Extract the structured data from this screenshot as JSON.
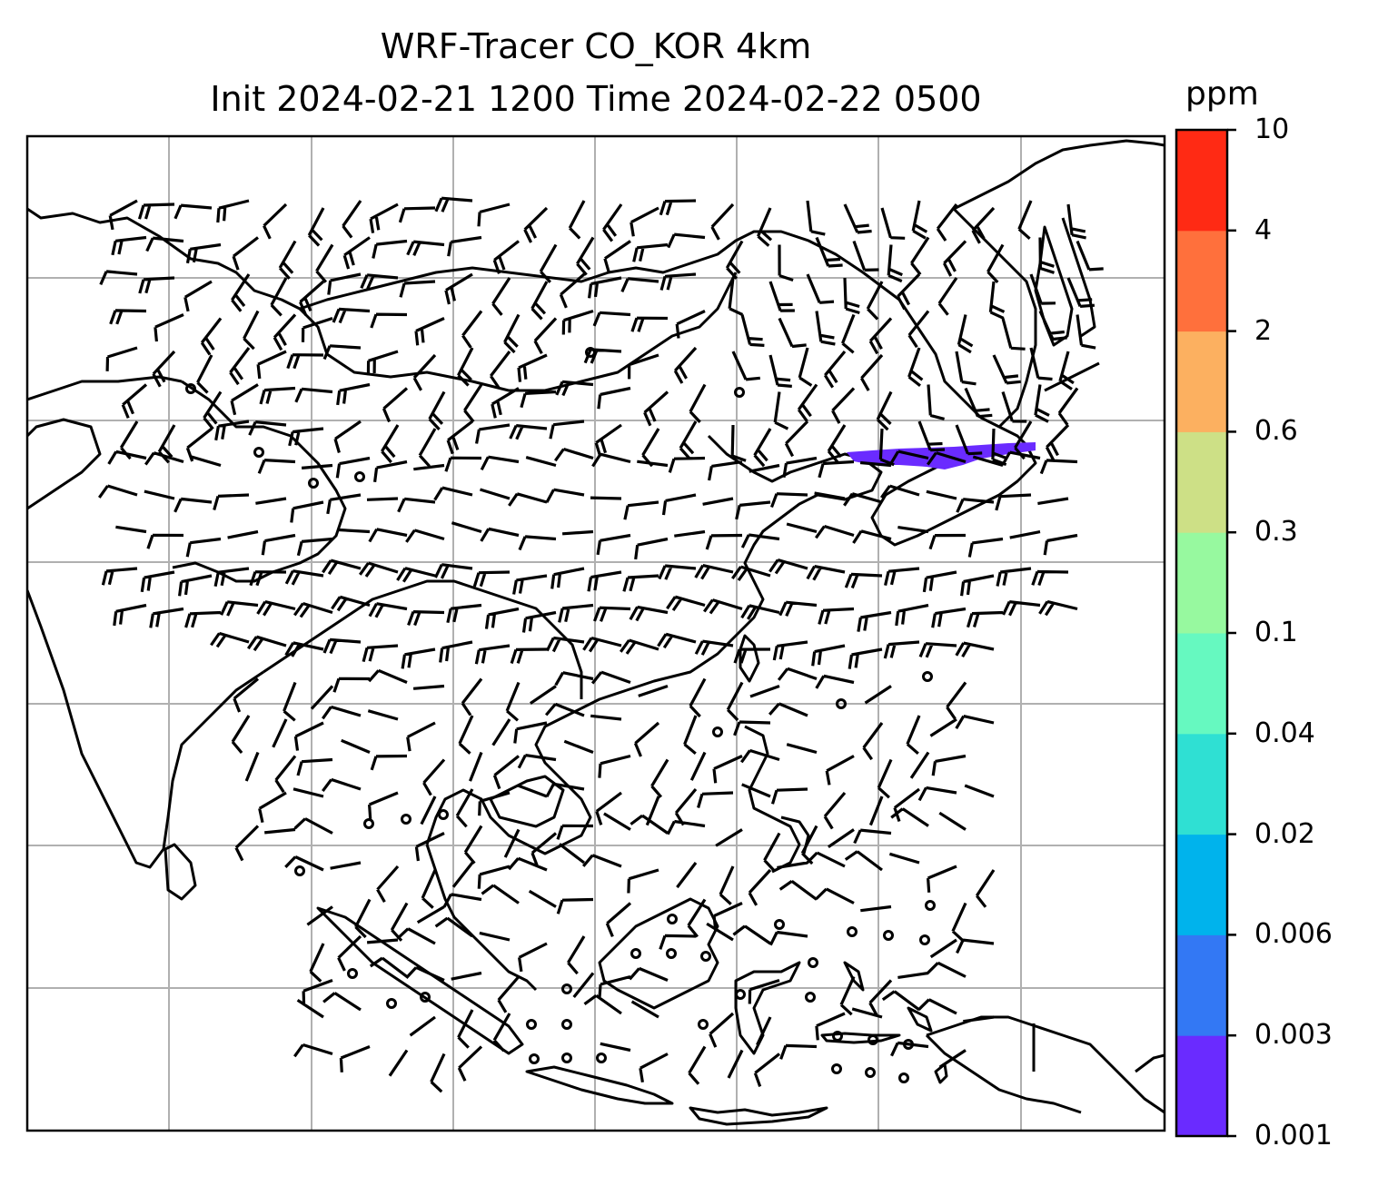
{
  "title": {
    "line1": "WRF-Tracer CO_KOR 4km",
    "line2": "Init 2024-02-21 1200 Time 2024-02-22 0500"
  },
  "colorbar": {
    "units": "ppm",
    "ticks": [
      "0.001",
      "0.003",
      "0.006",
      "0.02",
      "0.04",
      "0.1",
      "0.3",
      "0.6",
      "2",
      "4",
      "10"
    ],
    "colors": [
      "#6a2bff",
      "#3378f4",
      "#00b3ec",
      "#2fe0d3",
      "#66f9c0",
      "#97f99f",
      "#cde086",
      "#fcb060",
      "#ff703c",
      "#ff2a14"
    ]
  },
  "colors": {
    "plume": "#6a2bff",
    "coastline": "#000000",
    "gridline": "#b0b0b0",
    "barb": "#000000"
  },
  "map": {
    "features": [
      "coastlines",
      "country-borders",
      "gridlines",
      "wind-barbs",
      "co-tracer-plume"
    ]
  }
}
